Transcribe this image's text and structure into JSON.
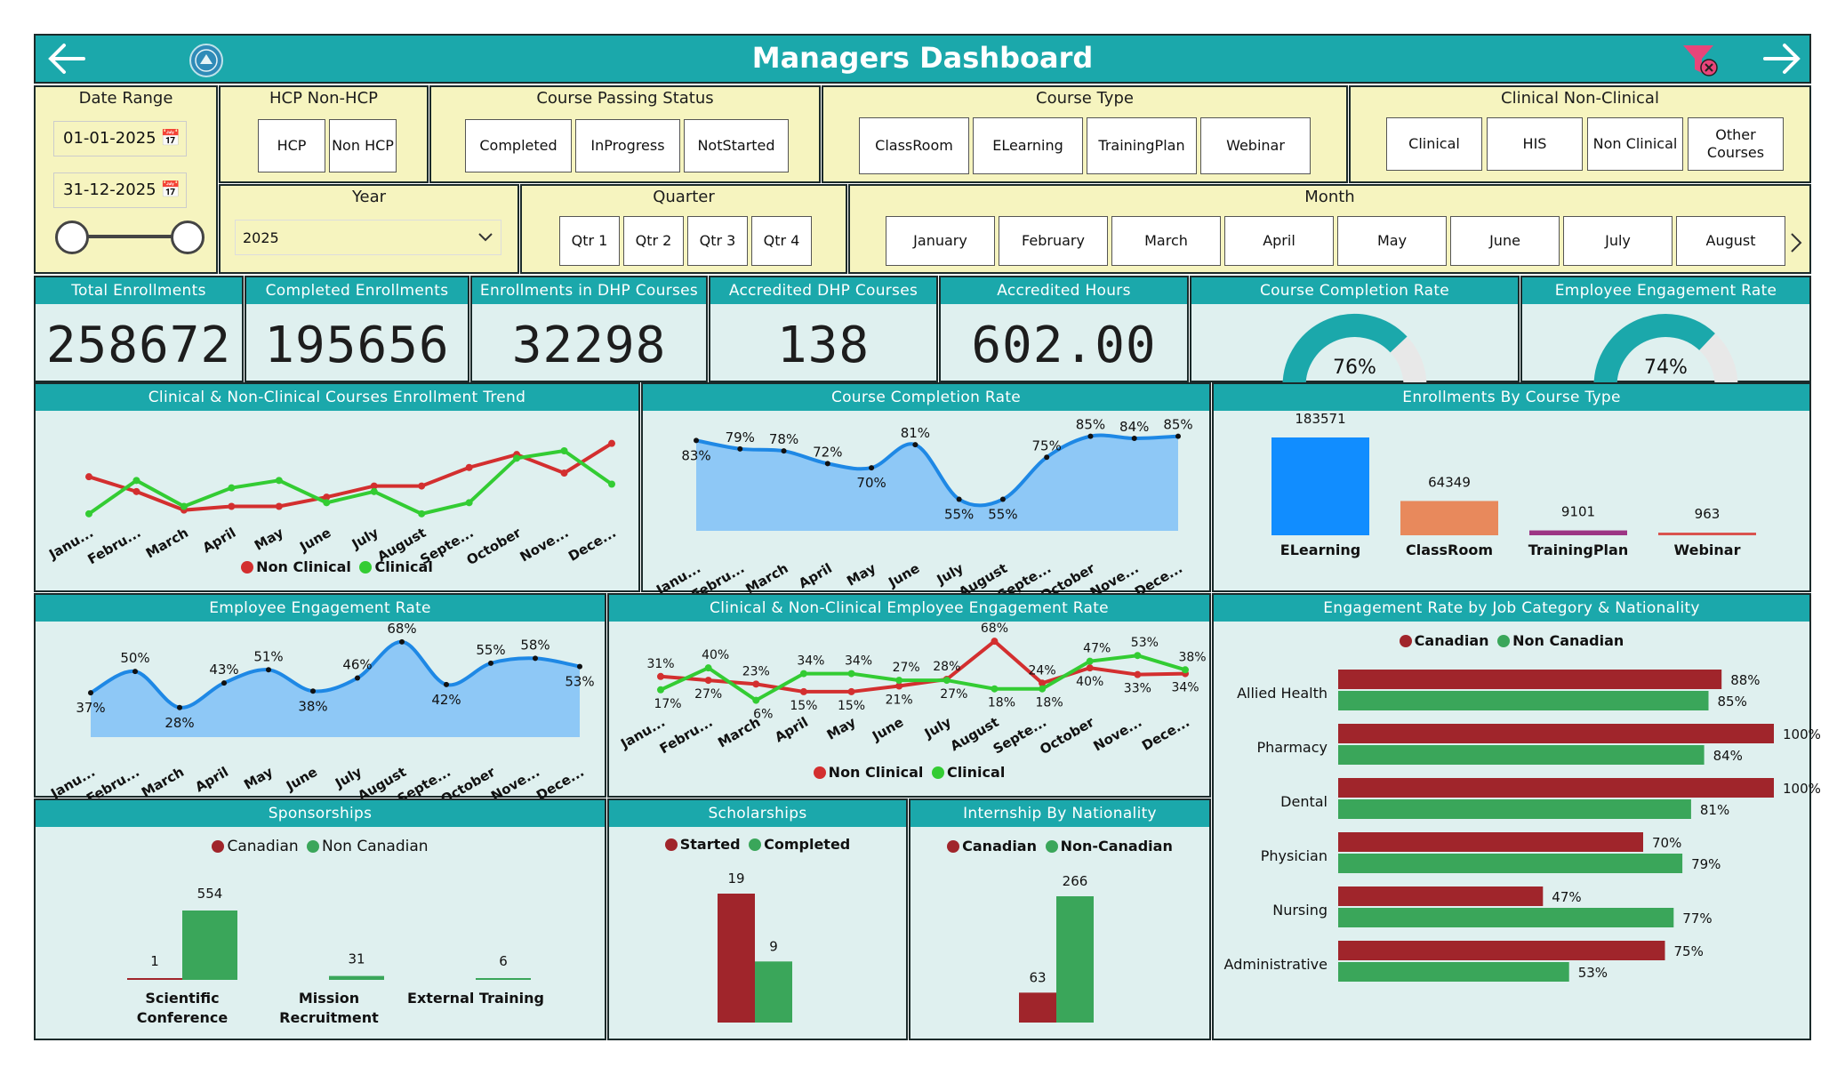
{
  "header": {
    "title": "Managers Dashboard",
    "back_icon": "arrow-left-icon",
    "forward_icon": "arrow-right-icon",
    "filter_icon": "clear-filter-icon",
    "logo_icon": "seal-logo-icon"
  },
  "colors": {
    "teal": "#1ba8ab",
    "cream": "#f6f4bf",
    "panel": "#dff0ef",
    "red": "#d32f2f",
    "green": "#33cc33",
    "blue": "#1e88e5",
    "lightblue": "#8ec8f6",
    "darkred": "#a0252b",
    "darkgreen": "#3aa65a"
  },
  "slicers": {
    "date_range": {
      "label": "Date Range",
      "start": "01-01-2025",
      "end": "31-12-2025"
    },
    "hcp": {
      "label": "HCP Non-HCP",
      "options": [
        "HCP",
        "Non HCP"
      ]
    },
    "passing": {
      "label": "Course Passing Status",
      "options": [
        "Completed",
        "InProgress",
        "NotStarted"
      ]
    },
    "course_type": {
      "label": "Course Type",
      "options": [
        "ClassRoom",
        "ELearning",
        "TrainingPlan",
        "Webinar"
      ]
    },
    "clinical": {
      "label": "Clinical Non-Clinical",
      "options": [
        "Clinical",
        "HIS",
        "Non Clinical",
        "Other Courses"
      ]
    },
    "year": {
      "label": "Year",
      "value": "2025"
    },
    "quarter": {
      "label": "Quarter",
      "options": [
        "Qtr 1",
        "Qtr 2",
        "Qtr 3",
        "Qtr 4"
      ]
    },
    "month": {
      "label": "Month",
      "options": [
        "January",
        "February",
        "March",
        "April",
        "May",
        "June",
        "July",
        "August"
      ]
    }
  },
  "kpis": [
    {
      "label": "Total Enrollments",
      "value": "258672"
    },
    {
      "label": "Completed Enrollments",
      "value": "195656"
    },
    {
      "label": "Enrollments in DHP Courses",
      "value": "32298"
    },
    {
      "label": "Accredited DHP Courses",
      "value": "138"
    },
    {
      "label": "Accredited Hours",
      "value": "602.00"
    }
  ],
  "gauges": [
    {
      "label": "Course Completion Rate",
      "value": 76,
      "text": "76%"
    },
    {
      "label": "Employee Engagement Rate",
      "value": 74,
      "text": "74%"
    }
  ],
  "months_short": [
    "Janu...",
    "Febru...",
    "March",
    "April",
    "May",
    "June",
    "July",
    "August",
    "Septe...",
    "October",
    "Nove...",
    "Dece..."
  ],
  "chart_data": [
    {
      "type": "line",
      "title": "Clinical & Non-Clinical Courses Enrollment Trend",
      "categories": [
        "Janu...",
        "Febru...",
        "March",
        "April",
        "May",
        "June",
        "July",
        "August",
        "Septe...",
        "October",
        "Nove...",
        "Dece..."
      ],
      "series": [
        {
          "name": "Non Clinical",
          "values": [
            74,
            66,
            56,
            58,
            58,
            63,
            69,
            69,
            79,
            86,
            76,
            92
          ]
        },
        {
          "name": "Clinical",
          "values": [
            54,
            72,
            58,
            68,
            72,
            60,
            66,
            54,
            60,
            84,
            88,
            70
          ]
        }
      ],
      "ylim": [
        40,
        100
      ]
    },
    {
      "type": "area",
      "title": "Course Completion Rate",
      "categories": [
        "Janu...",
        "Febru...",
        "March",
        "April",
        "May",
        "June",
        "July",
        "August",
        "Septe...",
        "October",
        "Nove...",
        "Dece..."
      ],
      "values": [
        83,
        79,
        78,
        72,
        70,
        81,
        55,
        55,
        75,
        85,
        84,
        85
      ],
      "labels": [
        "83%",
        "79%",
        "78%",
        "72%",
        "70%",
        "81%",
        "55%",
        "55%",
        "75%",
        "85%",
        "84%",
        "85%"
      ],
      "ylim": [
        40,
        95
      ]
    },
    {
      "type": "bar",
      "title": "Enrollments By Course Type",
      "categories": [
        "ELearning",
        "ClassRoom",
        "TrainingPlan",
        "Webinar"
      ],
      "values": [
        183571,
        64349,
        9101,
        963
      ],
      "labels": [
        "183571",
        "64349",
        "9101",
        "963"
      ],
      "colors": [
        "#118dff",
        "#e8895c",
        "#9c3584",
        "#d9534f"
      ]
    },
    {
      "type": "area",
      "title": "Employee Engagement Rate",
      "categories": [
        "Janu...",
        "Febru...",
        "March",
        "April",
        "May",
        "June",
        "July",
        "August",
        "Septe...",
        "October",
        "Nove...",
        "Dece..."
      ],
      "values": [
        37,
        50,
        28,
        43,
        51,
        38,
        46,
        68,
        42,
        55,
        58,
        53
      ],
      "labels": [
        "37%",
        "50%",
        "28%",
        "43%",
        "51%",
        "38%",
        "46%",
        "68%",
        "42%",
        "55%",
        "58%",
        "53%"
      ],
      "ylim": [
        10,
        75
      ]
    },
    {
      "type": "line",
      "title": "Clinical & Non-Clinical Employee Engagement Rate",
      "categories": [
        "Janu...",
        "Febru...",
        "March",
        "April",
        "May",
        "June",
        "July",
        "August",
        "Septe...",
        "October",
        "Nove...",
        "Dece..."
      ],
      "series": [
        {
          "name": "Non Clinical",
          "values": [
            31,
            27,
            23,
            15,
            15,
            21,
            28,
            68,
            24,
            40,
            33,
            34
          ],
          "labels": [
            "31%",
            "27%",
            "23%",
            "15%",
            "15%",
            "21%",
            "28%",
            "68%",
            "24%",
            "40%",
            "33%",
            "34%"
          ]
        },
        {
          "name": "Clinical",
          "values": [
            17,
            40,
            6,
            34,
            34,
            27,
            27,
            18,
            18,
            47,
            53,
            38
          ],
          "labels": [
            "17%",
            "40%",
            "6%",
            "34%",
            "34%",
            "27%",
            "27%",
            "18%",
            "18%",
            "47%",
            "53%",
            "38%"
          ]
        }
      ]
    },
    {
      "type": "bar",
      "title": "Engagement Rate by Job Category & Nationality",
      "orientation": "horizontal",
      "categories": [
        "Allied Health",
        "Pharmacy",
        "Dental",
        "Physician",
        "Nursing",
        "Administrative"
      ],
      "series": [
        {
          "name": "Canadian",
          "values": [
            88,
            100,
            100,
            70,
            47,
            75
          ],
          "labels": [
            "88%",
            "100%",
            "100%",
            "70%",
            "47%",
            "75%"
          ]
        },
        {
          "name": "Non Canadian",
          "values": [
            85,
            84,
            81,
            79,
            77,
            53
          ],
          "labels": [
            "85%",
            "84%",
            "81%",
            "79%",
            "77%",
            "53%"
          ]
        }
      ],
      "xlim": [
        0,
        100
      ]
    },
    {
      "type": "bar",
      "title": "Sponsorships",
      "categories": [
        "Scientific Conference",
        "Mission Recruitment",
        "External Training"
      ],
      "series": [
        {
          "name": "Canadian",
          "values": [
            1,
            0,
            0
          ]
        },
        {
          "name": "Non Canadian",
          "values": [
            554,
            31,
            6
          ]
        }
      ],
      "labels": [
        "1",
        "554",
        "31",
        "6"
      ]
    },
    {
      "type": "bar",
      "title": "Scholarships",
      "categories": [
        ""
      ],
      "series": [
        {
          "name": "Started",
          "values": [
            19
          ]
        },
        {
          "name": "Completed",
          "values": [
            9
          ]
        }
      ]
    },
    {
      "type": "bar",
      "title": "Internship By Nationality",
      "categories": [
        ""
      ],
      "series": [
        {
          "name": "Canadian",
          "values": [
            63
          ]
        },
        {
          "name": "Non-Canadian",
          "values": [
            266
          ]
        }
      ]
    }
  ]
}
